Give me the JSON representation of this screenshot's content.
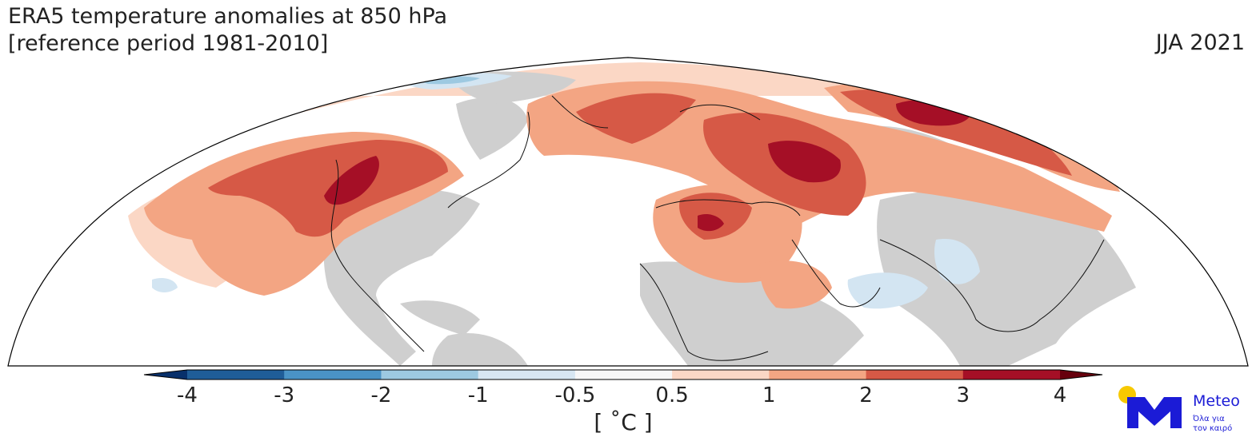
{
  "header": {
    "title_line1": "ERA5 temperature anomalies at 850 hPa",
    "title_line2": "[reference period 1981-2010]",
    "period": "JJA 2021"
  },
  "colorbar": {
    "ticks": [
      "-4",
      "-3",
      "-2",
      "-1",
      "-0.5",
      "0.5",
      "1",
      "2",
      "3",
      "4"
    ],
    "unit": "[ ˚C ]",
    "colors": [
      "#08306b",
      "#1f5d98",
      "#4a93c6",
      "#9dc9e1",
      "#d7e6f2",
      "#f7f7f7",
      "#fbd7c5",
      "#f3a583",
      "#d65946",
      "#a50f26",
      "#67000d"
    ]
  },
  "palette": {
    "land_neutral": "#cfcfcf",
    "ocean_neutral": "#ffffff",
    "light_warm": "#fbd7c5",
    "mid_warm": "#f3a583",
    "strong_warm": "#d65946",
    "extreme_warm": "#a50f26",
    "light_cool": "#d3e5f2",
    "mid_cool": "#9dc9e1"
  },
  "logo": {
    "name": "Meteo",
    "tagline_line1": "Όλα για",
    "tagline_line2": "τον καιρό",
    "sun_color": "#f7c900",
    "brand_color": "#1b1bd6"
  }
}
